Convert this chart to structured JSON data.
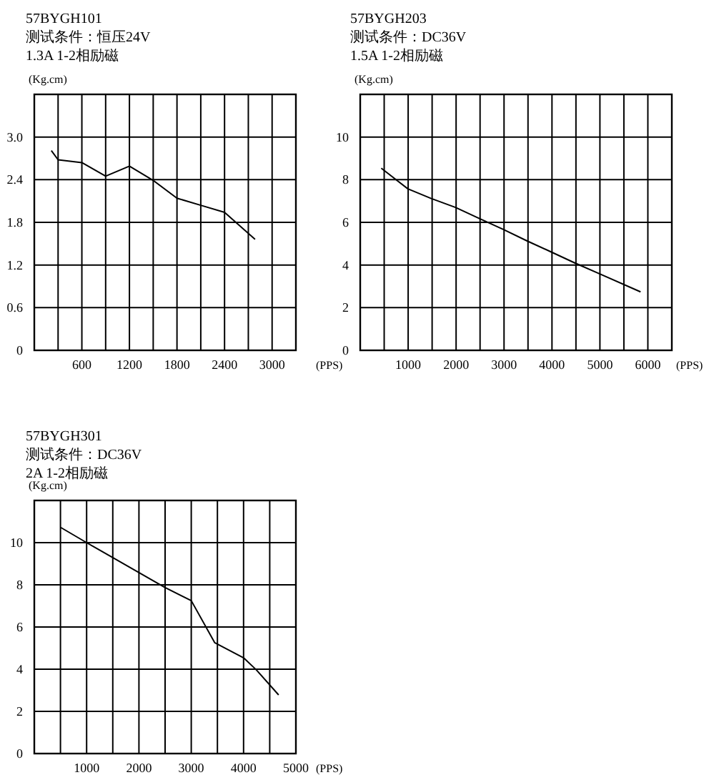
{
  "chart_data": [
    {
      "type": "line",
      "title": "57BYGH101",
      "subtitle": "测试条件：恒压24V",
      "annotations": [
        "1.3A  1-2相励磁"
      ],
      "xlabel": "(PPS)",
      "ylabel": "(Kg.cm)",
      "series": [
        {
          "color": "#000000",
          "x": [
            215,
            300,
            600,
            900,
            1200,
            1500,
            1800,
            2100,
            2400,
            2785
          ],
          "values": [
            2.81,
            2.68,
            2.64,
            2.45,
            2.59,
            2.39,
            2.14,
            2.04,
            1.94,
            1.56
          ]
        }
      ],
      "xlim": [
        0,
        3300
      ],
      "xticks": [
        {
          "value": 300,
          "label": null
        },
        600,
        {
          "value": 900,
          "label": null
        },
        1200,
        {
          "value": 1500,
          "label": null
        },
        1800,
        {
          "value": 2100,
          "label": null
        },
        2400,
        {
          "value": 2700,
          "label": null
        },
        3000
      ],
      "ylim": [
        0,
        3.6
      ],
      "yticks": [
        0,
        0.6,
        1.2,
        1.8,
        2.4,
        {
          "value": 3,
          "label": "3.0"
        },
        {
          "value": 3.6,
          "label": null
        }
      ],
      "grid": true
    },
    {
      "type": "line",
      "title": "57BYGH203",
      "subtitle": "测试条件：DC36V",
      "annotations": [
        "1.5A  1-2相励磁"
      ],
      "xlabel": "(PPS)",
      "ylabel": "(Kg.cm)",
      "series": [
        {
          "color": "#000000",
          "x": [
            439,
            994,
            1481,
            1988,
            2485,
            2992,
            3489,
            3986,
            4483,
            4981,
            5848
          ],
          "values": [
            8.54,
            7.57,
            7.12,
            6.7,
            6.18,
            5.66,
            5.12,
            4.61,
            4.09,
            3.6,
            2.74
          ]
        }
      ],
      "xlim": [
        0,
        6500
      ],
      "xticks": [
        {
          "value": 500,
          "label": null
        },
        1000,
        {
          "value": 1500,
          "label": null
        },
        2000,
        {
          "value": 2500,
          "label": null
        },
        3000,
        {
          "value": 3500,
          "label": null
        },
        4000,
        {
          "value": 4500,
          "label": null
        },
        5000,
        {
          "value": 5500,
          "label": null
        },
        6000
      ],
      "ylim": [
        0,
        12
      ],
      "yticks": [
        0,
        2,
        4,
        6,
        8,
        10,
        {
          "value": 12,
          "label": null
        }
      ],
      "grid": true
    },
    {
      "type": "line",
      "title": "57BYGH301",
      "subtitle": "测试条件：DC36V",
      "annotations": [
        "2A  1-2相励磁"
      ],
      "xlabel": "(PPS)",
      "ylabel": "(Kg.cm)",
      "series": [
        {
          "color": "#000000",
          "x": [
            505,
            1000,
            1505,
            2000,
            2495,
            3000,
            3447,
            4000,
            4243,
            4670
          ],
          "values": [
            10.72,
            10.0,
            9.28,
            8.58,
            7.88,
            7.25,
            5.26,
            4.54,
            3.97,
            2.78
          ]
        }
      ],
      "xlim": [
        0,
        5000
      ],
      "xticks": [
        {
          "value": 500,
          "label": null
        },
        1000,
        {
          "value": 1500,
          "label": null
        },
        2000,
        {
          "value": 2500,
          "label": null
        },
        3000,
        {
          "value": 3500,
          "label": null
        },
        4000,
        {
          "value": 4500,
          "label": null
        },
        5000
      ],
      "ylim": [
        0,
        12
      ],
      "yticks": [
        0,
        2,
        4,
        6,
        8,
        10,
        {
          "value": 12,
          "label": null
        }
      ],
      "grid": true
    }
  ]
}
